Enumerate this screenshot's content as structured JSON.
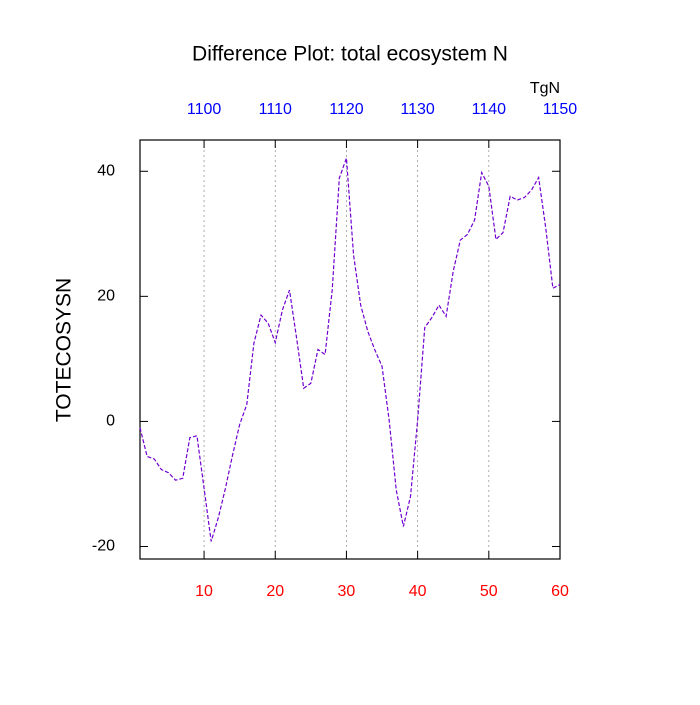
{
  "chart_data": {
    "type": "line",
    "title": "Difference Plot: total ecosystem N",
    "y_label": "TOTECOSYSN",
    "x2_unit_label": "TgN",
    "x": [
      1,
      2,
      3,
      4,
      5,
      6,
      7,
      8,
      9,
      10,
      11,
      12,
      13,
      14,
      15,
      16,
      17,
      18,
      19,
      20,
      21,
      22,
      23,
      24,
      25,
      26,
      27,
      28,
      29,
      30,
      31,
      32,
      33,
      34,
      35,
      36,
      37,
      38,
      39,
      40,
      41,
      42,
      43,
      44,
      45,
      46,
      47,
      48,
      49,
      50,
      51,
      52,
      53,
      54,
      55,
      56,
      57,
      58,
      59,
      60
    ],
    "series": [
      {
        "color": "#7000d0",
        "values": [
          -1,
          -5.6,
          -6,
          -7.7,
          -8.2,
          -9.4,
          -9.1,
          -2.6,
          -2.3,
          -10.7,
          -19.2,
          -15.4,
          -10.7,
          -5.4,
          -0.5,
          2.7,
          12.5,
          17,
          15.7,
          12.6,
          17.8,
          21,
          13.3,
          5.3,
          6.1,
          11.5,
          10.7,
          21,
          38.9,
          42.1,
          26.6,
          18.6,
          14.4,
          11.4,
          8.8,
          0.2,
          -11,
          -16.8,
          -12,
          0.2,
          15,
          16.6,
          18.6,
          16.8,
          24,
          29,
          29.9,
          32.2,
          39.8,
          37.6,
          29.1,
          30.2,
          36,
          35.4,
          35.8,
          37,
          39,
          30.9,
          21.3,
          21.9
        ]
      }
    ],
    "xlim": [
      1,
      60
    ],
    "xticks": [
      10,
      20,
      30,
      40,
      50,
      60
    ],
    "xtick_color": "#ff0000",
    "x2lim": [
      1091,
      1150
    ],
    "x2ticks": [
      1100,
      1110,
      1120,
      1130,
      1140,
      1150
    ],
    "x2tick_color": "#0000ff",
    "ylim": [
      -22,
      45
    ],
    "yticks": [
      -20,
      0,
      20,
      40
    ],
    "grid": true
  }
}
